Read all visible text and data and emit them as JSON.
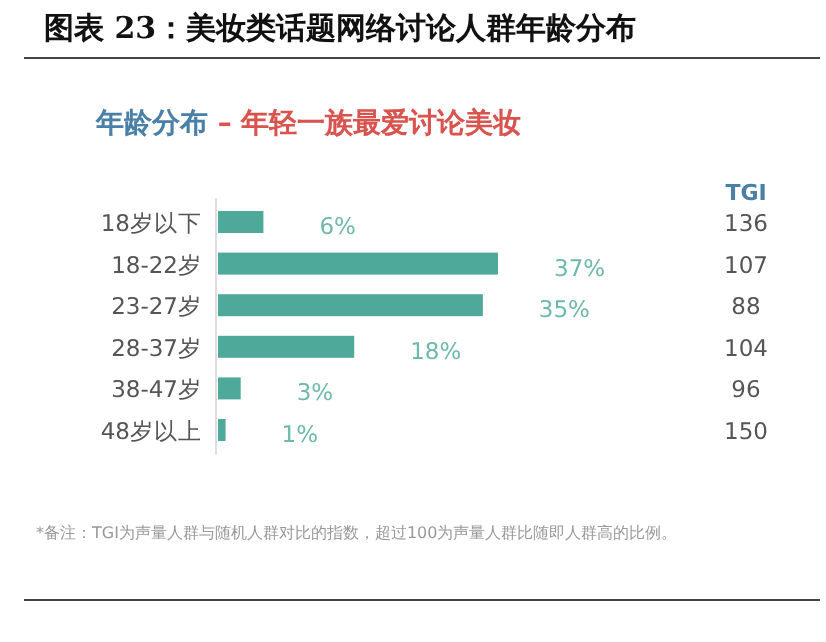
{
  "chart_data": {
    "type": "bar",
    "orientation": "horizontal",
    "title": "图表 23：美妆类话题网络讨论人群年龄分布",
    "subtitle": "年龄分布 – 年轻一族最爱讨论美妆",
    "categories": [
      "18岁以下",
      "18-22岁",
      "23-27岁",
      "28-37岁",
      "38-47岁",
      "48岁以上"
    ],
    "values": [
      6,
      37,
      35,
      18,
      3,
      1
    ],
    "value_labels": [
      "6%",
      "37%",
      "35%",
      "18%",
      "3%",
      "1%"
    ],
    "color": "#4fa99b",
    "annotations": [
      "TGI",
      "136",
      "107",
      "88",
      "104",
      "96",
      "150",
      "*备注：TGI为声量人群与随机人群对比的指数，超过100为声量人群比随即人群高的比例。"
    ]
  }
}
